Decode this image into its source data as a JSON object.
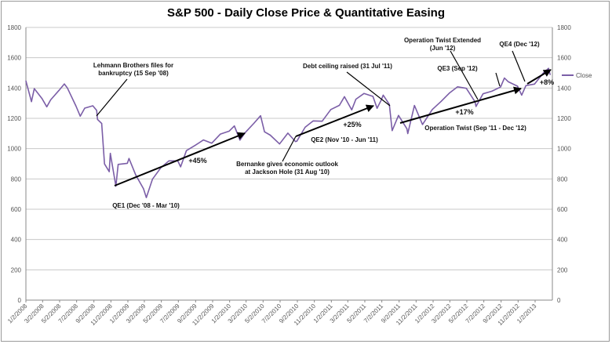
{
  "chart_data": {
    "type": "line",
    "title": "S&P 500 - Daily Close Price & Quantitative Easing",
    "xlabel": "",
    "ylabel": "",
    "ylim": [
      0,
      1800
    ],
    "yticks": [
      "0",
      "200",
      "400",
      "600",
      "800",
      "1000",
      "1200",
      "1400",
      "1600",
      "1800"
    ],
    "secondary_ylim": [
      0,
      1800
    ],
    "grid": true,
    "legend_position": "right",
    "xtick_labels": [
      "1/2/2008",
      "3/2/2008",
      "5/2/2008",
      "7/2/2008",
      "9/2/2008",
      "11/2/2008",
      "1/2/2009",
      "3/2/2009",
      "5/2/2009",
      "7/2/2009",
      "9/2/2009",
      "11/2/2009",
      "1/2/2010",
      "3/2/2010",
      "5/2/2010",
      "7/2/2010",
      "9/2/2010",
      "11/2/2010",
      "1/2/2011",
      "3/2/2011",
      "5/2/2011",
      "7/2/2011",
      "9/2/2011",
      "11/2/2011",
      "1/2/2012",
      "3/2/2012",
      "5/2/2012",
      "7/2/2012",
      "9/2/2012",
      "11/2/2012",
      "1/2/2013"
    ],
    "series": [
      {
        "name": "Close",
        "color": "#7b5ea7",
        "x": [
          "2008-01-02",
          "2008-01-22",
          "2008-02-01",
          "2008-02-29",
          "2008-03-17",
          "2008-03-31",
          "2008-04-30",
          "2008-05-19",
          "2008-05-30",
          "2008-06-30",
          "2008-07-15",
          "2008-07-31",
          "2008-08-29",
          "2008-09-12",
          "2008-09-15",
          "2008-09-30",
          "2008-10-10",
          "2008-10-27",
          "2008-10-31",
          "2008-11-20",
          "2008-11-28",
          "2008-12-31",
          "2009-01-06",
          "2009-01-30",
          "2009-02-27",
          "2009-03-09",
          "2009-03-31",
          "2009-04-30",
          "2009-05-29",
          "2009-06-30",
          "2009-07-10",
          "2009-07-31",
          "2009-08-31",
          "2009-09-30",
          "2009-10-30",
          "2009-11-30",
          "2009-12-31",
          "2010-01-19",
          "2010-02-08",
          "2010-02-26",
          "2010-03-31",
          "2010-04-23",
          "2010-05-07",
          "2010-05-28",
          "2010-06-30",
          "2010-07-30",
          "2010-08-26",
          "2010-08-31",
          "2010-09-30",
          "2010-10-29",
          "2010-11-30",
          "2010-12-31",
          "2011-01-31",
          "2011-02-18",
          "2011-03-16",
          "2011-03-31",
          "2011-04-29",
          "2011-05-31",
          "2011-06-15",
          "2011-06-30",
          "2011-07-07",
          "2011-07-29",
          "2011-08-08",
          "2011-08-31",
          "2011-09-30",
          "2011-10-03",
          "2011-10-27",
          "2011-11-25",
          "2011-12-30",
          "2012-01-31",
          "2012-02-29",
          "2012-03-30",
          "2012-04-30",
          "2012-05-31",
          "2012-06-04",
          "2012-06-29",
          "2012-07-31",
          "2012-08-31",
          "2012-09-14",
          "2012-09-28",
          "2012-10-31",
          "2012-11-15",
          "2012-11-30",
          "2012-12-31",
          "2013-01-31",
          "2013-02-19",
          "2013-02-25"
        ],
        "values": [
          1447,
          1310,
          1396,
          1330,
          1276,
          1322,
          1385,
          1427,
          1400,
          1280,
          1214,
          1267,
          1283,
          1252,
          1193,
          1166,
          899,
          848,
          969,
          752,
          896,
          903,
          935,
          826,
          735,
          677,
          798,
          873,
          919,
          919,
          880,
          987,
          1021,
          1057,
          1036,
          1096,
          1115,
          1150,
          1056,
          1104,
          1169,
          1217,
          1111,
          1089,
          1031,
          1102,
          1047,
          1049,
          1141,
          1183,
          1181,
          1258,
          1286,
          1343,
          1256,
          1326,
          1364,
          1345,
          1266,
          1321,
          1353,
          1292,
          1119,
          1219,
          1131,
          1099,
          1285,
          1159,
          1258,
          1312,
          1366,
          1408,
          1398,
          1310,
          1278,
          1362,
          1379,
          1407,
          1466,
          1441,
          1412,
          1353,
          1416,
          1426,
          1498,
          1530,
          1488
        ]
      }
    ],
    "annotations": [
      {
        "text_lines": [
          "Lehmann Brothers files for",
          "bankruptcy (15 Sep '08)"
        ]
      },
      {
        "text_lines": [
          "QE1 (Dec '08 - Mar '10)"
        ],
        "change": "+45%"
      },
      {
        "text_lines": [
          "Bernanke gives economic outlook",
          "at Jackson Hole (31 Aug '10)"
        ]
      },
      {
        "text_lines": [
          "QE2 (Nov '10 - Jun '11)"
        ],
        "change": "+25%"
      },
      {
        "text_lines": [
          "Debt ceiling raised (31 Jul '11)"
        ]
      },
      {
        "text_lines": [
          "Operation Twist Extended",
          "(Jun '12)"
        ]
      },
      {
        "text_lines": [
          "Operation Twist (Sep '11 - Dec '12)"
        ],
        "change": "+17%"
      },
      {
        "text_lines": [
          "QE3 (Sep '12)"
        ]
      },
      {
        "text_lines": [
          "QE4 (Dec '12)"
        ],
        "change": "+8%"
      }
    ]
  }
}
